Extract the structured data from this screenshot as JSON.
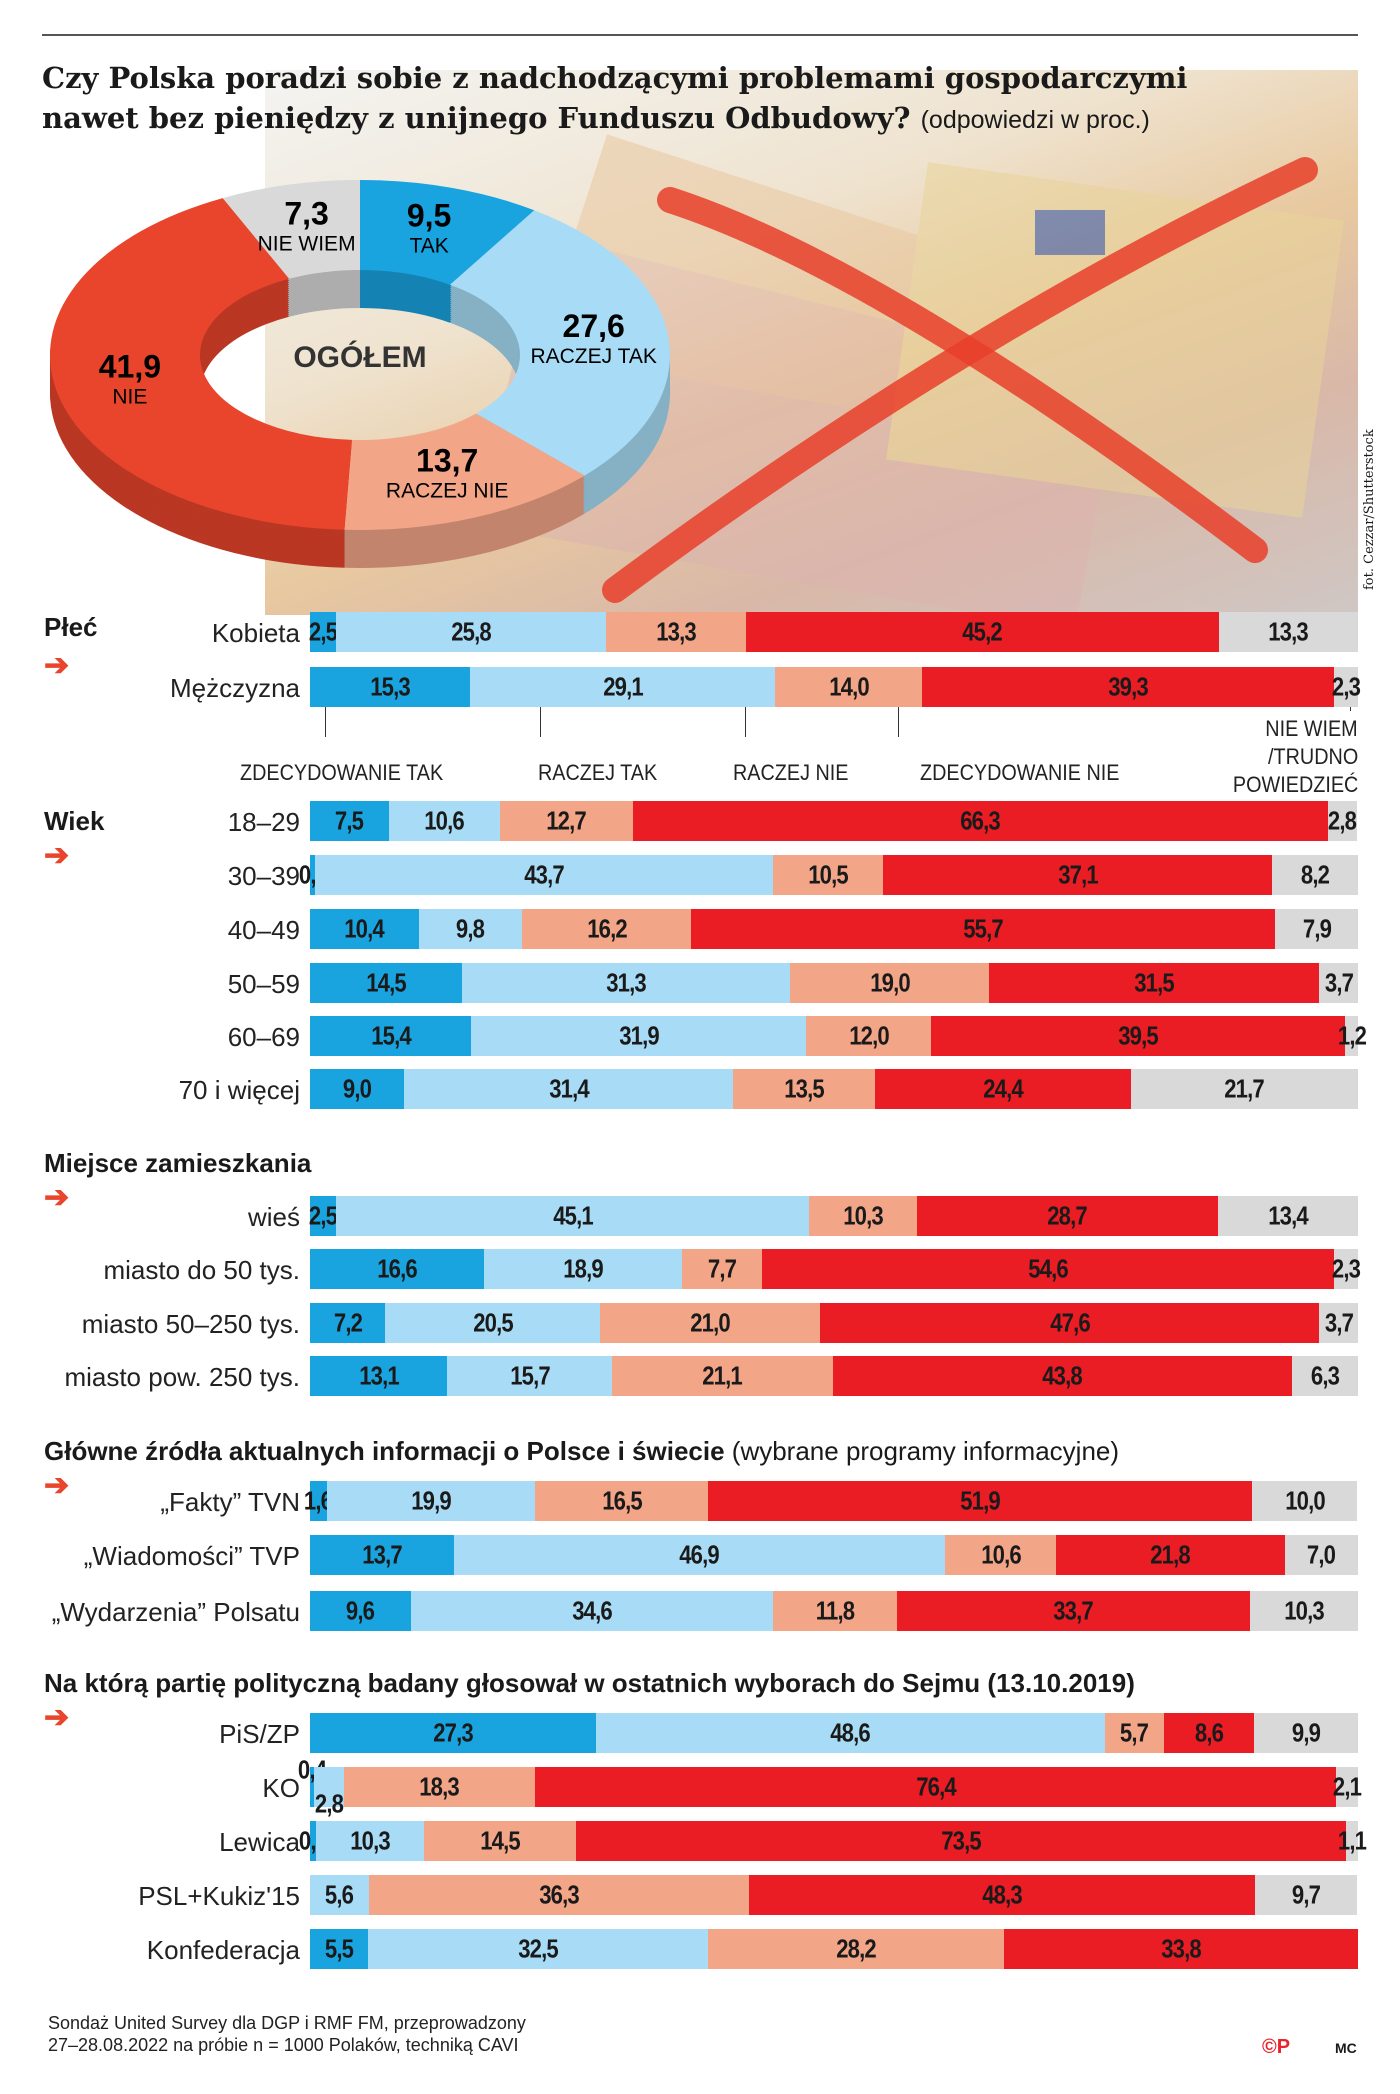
{
  "title": {
    "line1": "Czy Polska poradzi sobie z nadchodzącymi problemami gospodarczymi",
    "line2": "nawet bez pieniędzy z unijnego Funduszu Odbudowy?",
    "note": "(odpowiedzi w proc.)"
  },
  "photo_credit": "fot. Cezzar/Shutterstock",
  "colors": {
    "zdecydowanie_tak": "#19a4e0",
    "raczej_tak": "#a8dcf6",
    "raczej_nie": "#f3a588",
    "zdecydowanie_nie": "#ea1c24",
    "nie_wiem": "#d9d9d9",
    "arrow": "#e8452c"
  },
  "chart_data": [
    {
      "type": "pie",
      "center_label": "OGÓŁEM",
      "slices": [
        {
          "label": "TAK",
          "value": 9.5,
          "display": "9,5",
          "color": "#19a4e0"
        },
        {
          "label": "RACZEJ TAK",
          "value": 27.6,
          "display": "27,6",
          "color": "#a8dcf6"
        },
        {
          "label": "RACZEJ NIE",
          "value": 13.7,
          "display": "13,7",
          "color": "#f3a588"
        },
        {
          "label": "NIE",
          "value": 41.9,
          "display": "41,9",
          "color": "#e8452c"
        },
        {
          "label": "NIE WIEM",
          "value": 7.3,
          "display": "7,3",
          "color": "#d9d9d9"
        }
      ]
    },
    {
      "type": "bar",
      "stacked": true,
      "orientation": "horizontal",
      "series": [
        "ZDECYDOWANIE TAK",
        "RACZEJ TAK",
        "RACZEJ NIE",
        "ZDECYDOWANIE NIE",
        "NIE WIEM /TRUDNO POWIEDZIEĆ"
      ],
      "groups": [
        {
          "title": "Płeć",
          "rows": [
            {
              "label": "Kobieta",
              "values": [
                "2,5",
                "25,8",
                "13,3",
                "45,2",
                "13,3"
              ]
            },
            {
              "label": "Mężczyzna",
              "values": [
                "15,3",
                "29,1",
                "14,0",
                "39,3",
                "2,3"
              ]
            }
          ]
        },
        {
          "title": "Wiek",
          "rows": [
            {
              "label": "18–29",
              "values": [
                "7,5",
                "10,6",
                "12,7",
                "66,3",
                "2,8"
              ]
            },
            {
              "label": "30–39",
              "values": [
                "0,5",
                "43,7",
                "10,5",
                "37,1",
                "8,2"
              ]
            },
            {
              "label": "40–49",
              "values": [
                "10,4",
                "9,8",
                "16,2",
                "55,7",
                "7,9"
              ]
            },
            {
              "label": "50–59",
              "values": [
                "14,5",
                "31,3",
                "19,0",
                "31,5",
                "3,7"
              ]
            },
            {
              "label": "60–69",
              "values": [
                "15,4",
                "31,9",
                "12,0",
                "39,5",
                "1,2"
              ]
            },
            {
              "label": "70 i więcej",
              "values": [
                "9,0",
                "31,4",
                "13,5",
                "24,4",
                "21,7"
              ]
            }
          ]
        },
        {
          "title": "Miejsce zamieszkania",
          "rows": [
            {
              "label": "wieś",
              "values": [
                "2,5",
                "45,1",
                "10,3",
                "28,7",
                "13,4"
              ]
            },
            {
              "label": "miasto do 50 tys.",
              "values": [
                "16,6",
                "18,9",
                "7,7",
                "54,6",
                "2,3"
              ]
            },
            {
              "label": "miasto 50–250 tys.",
              "values": [
                "7,2",
                "20,5",
                "21,0",
                "47,6",
                "3,7"
              ]
            },
            {
              "label": "miasto pow. 250 tys.",
              "values": [
                "13,1",
                "15,7",
                "21,1",
                "43,8",
                "6,3"
              ]
            }
          ]
        },
        {
          "title": "Główne źródła aktualnych informacji o Polsce i świecie",
          "subtitle": "(wybrane programy informacyjne)",
          "rows": [
            {
              "label": "„Fakty” TVN",
              "values": [
                "1,6",
                "19,9",
                "16,5",
                "51,9",
                "10,0"
              ]
            },
            {
              "label": "„Wiadomości” TVP",
              "values": [
                "13,7",
                "46,9",
                "10,6",
                "21,8",
                "7,0"
              ]
            },
            {
              "label": "„Wydarzenia” Polsatu",
              "values": [
                "9,6",
                "34,6",
                "11,8",
                "33,7",
                "10,3"
              ]
            }
          ]
        },
        {
          "title": "Na którą partię polityczną badany głosował w ostatnich wyborach do Sejmu (13.10.2019)",
          "rows": [
            {
              "label": "PiS/ZP",
              "values": [
                "27,3",
                "48,6",
                "5,7",
                "8,6",
                "9,9"
              ]
            },
            {
              "label": "KO",
              "values": [
                "0,4",
                "2,8",
                "18,3",
                "76,4",
                "2,1"
              ]
            },
            {
              "label": "Lewica",
              "values": [
                "0,6",
                "10,3",
                "14,5",
                "73,5",
                "1,1"
              ]
            },
            {
              "label": "PSL+Kukiz'15",
              "values": [
                null,
                "5,6",
                "36,3",
                "48,3",
                "9,7"
              ]
            },
            {
              "label": "Konfederacja",
              "values": [
                "5,5",
                "32,5",
                "28,2",
                "33,8",
                null
              ]
            }
          ]
        }
      ]
    }
  ],
  "legend_annotations": [
    "ZDECYDOWANIE TAK",
    "RACZEJ TAK",
    "RACZEJ NIE",
    "ZDECYDOWANIE NIE",
    "NIE WIEM",
    "/TRUDNO",
    "POWIEDZIEĆ"
  ],
  "footer": {
    "line1": "Sondaż United Survey dla DGP i RMF FM, przeprowadzony",
    "line2": "27–28.08.2022  na próbie n = 1000 Polaków, techniką CAVI",
    "logo": "©P",
    "author": "MC"
  }
}
